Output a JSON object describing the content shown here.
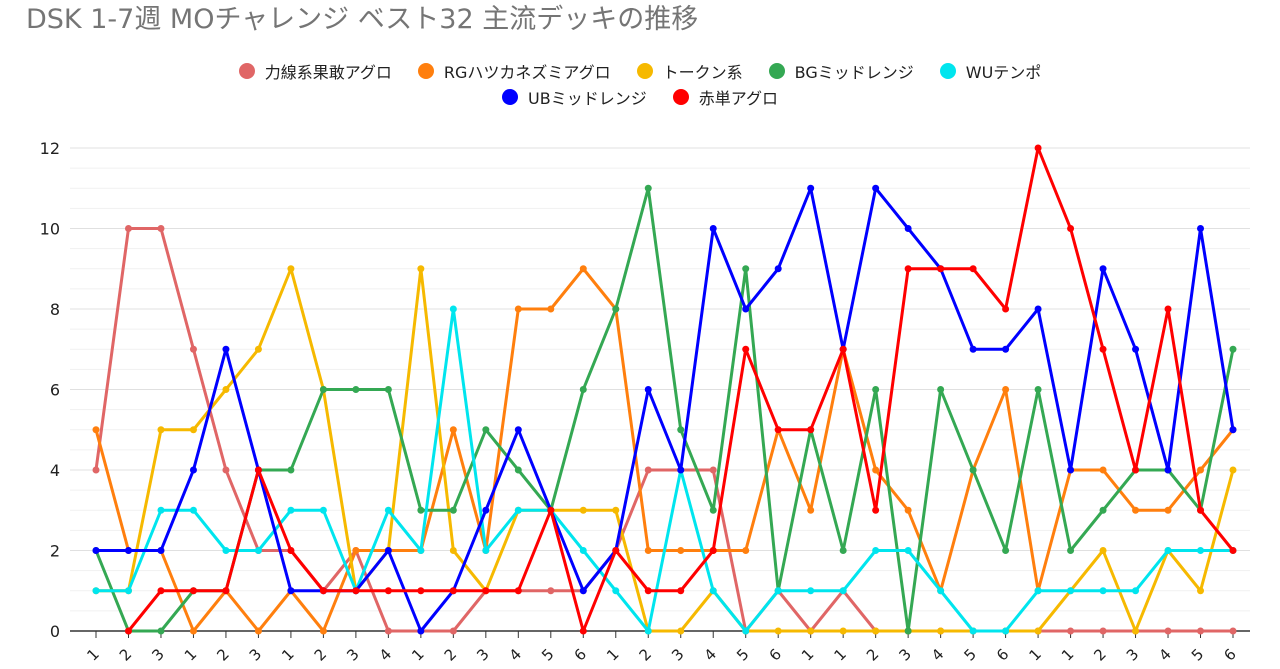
{
  "chart_data": {
    "type": "line",
    "title": "DSK 1-7週 MOチャレンジ ベスト32 主流デッキの推移",
    "xlabel": "",
    "ylabel": "",
    "ylim": [
      0,
      12
    ],
    "yticks": [
      "0",
      "2",
      "4",
      "6",
      "8",
      "10",
      "12"
    ],
    "grid": true,
    "legend_position": "top-center",
    "categories": [
      "1",
      "2",
      "3",
      "1",
      "2",
      "3",
      "1",
      "2",
      "3",
      "4",
      "1",
      "2",
      "3",
      "4",
      "5",
      "6",
      "1",
      "2",
      "3",
      "4",
      "5",
      "6",
      "1",
      "1",
      "2",
      "3",
      "4",
      "5",
      "6",
      "1",
      "1",
      "2",
      "3",
      "4",
      "5",
      "6"
    ],
    "series": [
      {
        "name": "力線系果敢アグロ",
        "color": "#e06666",
        "values": [
          4,
          10,
          10,
          7,
          4,
          2,
          2,
          1,
          2,
          0,
          0,
          0,
          1,
          1,
          1,
          1,
          2,
          4,
          4,
          4,
          0,
          1,
          0,
          1,
          0,
          0,
          0,
          0,
          0,
          0,
          0,
          0,
          0,
          0,
          0,
          0
        ]
      },
      {
        "name": "RGハツカネズミアグロ",
        "color": "#ff7f0e",
        "values": [
          5,
          2,
          2,
          0,
          1,
          0,
          1,
          0,
          2,
          2,
          2,
          5,
          2,
          8,
          8,
          9,
          8,
          2,
          2,
          2,
          2,
          5,
          3,
          7,
          4,
          3,
          1,
          4,
          6,
          1,
          4,
          4,
          3,
          3,
          4,
          5
        ]
      },
      {
        "name": "トークン系",
        "color": "#f6b900",
        "values": [
          1,
          1,
          5,
          5,
          6,
          7,
          9,
          6,
          1,
          2,
          9,
          2,
          1,
          3,
          3,
          3,
          3,
          0,
          0,
          1,
          0,
          0,
          0,
          0,
          0,
          0,
          0,
          0,
          0,
          0,
          1,
          2,
          0,
          2,
          1,
          4
        ]
      },
      {
        "name": "BGミッドレンジ",
        "color": "#34a853",
        "values": [
          2,
          0,
          0,
          1,
          1,
          4,
          4,
          6,
          6,
          6,
          3,
          3,
          5,
          4,
          3,
          6,
          8,
          11,
          5,
          3,
          9,
          1,
          5,
          2,
          6,
          0,
          6,
          4,
          2,
          6,
          2,
          3,
          4,
          4,
          3,
          7
        ]
      },
      {
        "name": "WUテンポ",
        "color": "#00e5ee",
        "values": [
          1,
          1,
          3,
          3,
          2,
          2,
          3,
          3,
          1,
          3,
          2,
          8,
          2,
          3,
          3,
          2,
          1,
          0,
          4,
          1,
          0,
          1,
          1,
          1,
          2,
          2,
          1,
          0,
          0,
          1,
          1,
          1,
          1,
          2,
          2,
          2
        ]
      },
      {
        "name": "UBミッドレンジ",
        "color": "#0000ff",
        "values": [
          2,
          2,
          2,
          4,
          7,
          4,
          1,
          1,
          1,
          2,
          0,
          1,
          3,
          5,
          3,
          1,
          2,
          6,
          4,
          10,
          8,
          9,
          11,
          7,
          11,
          10,
          9,
          7,
          7,
          8,
          4,
          9,
          7,
          4,
          10,
          5
        ]
      },
      {
        "name": "赤単アグロ",
        "color": "#ff0000",
        "values": [
          null,
          0,
          1,
          1,
          1,
          4,
          2,
          1,
          1,
          1,
          1,
          1,
          1,
          1,
          3,
          0,
          2,
          1,
          1,
          2,
          7,
          5,
          5,
          7,
          3,
          9,
          9,
          9,
          8,
          12,
          10,
          7,
          4,
          8,
          3,
          2
        ]
      }
    ]
  }
}
